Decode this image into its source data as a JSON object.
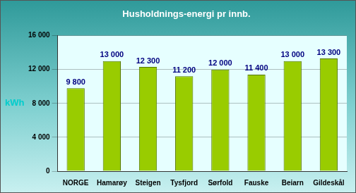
{
  "chart_data": {
    "type": "bar",
    "title": "Husholdnings-energi pr innb.",
    "y_label": "kWh",
    "categories": [
      "NORGE",
      "Hamarøy",
      "Steigen",
      "Tysfjord",
      "Sørfold",
      "Fauske",
      "Beiarn",
      "Gildeskål"
    ],
    "values": [
      9800,
      13000,
      12300,
      11200,
      12000,
      11400,
      13000,
      13300
    ],
    "value_labels": [
      "9 800",
      "13 000",
      "12 300",
      "11 200",
      "12 000",
      "11 400",
      "13 000",
      "13 300"
    ],
    "data_labels": true,
    "color": "#99cc00",
    "ylim": [
      0,
      16000
    ],
    "yticks": [
      0,
      {
        "value": 4000,
        "label": "4 000"
      },
      {
        "value": 8000,
        "label": "8 000"
      },
      {
        "value": 12000,
        "label": "12 000"
      },
      {
        "value": 16000,
        "label": "16 000"
      }
    ],
    "grid": true
  }
}
